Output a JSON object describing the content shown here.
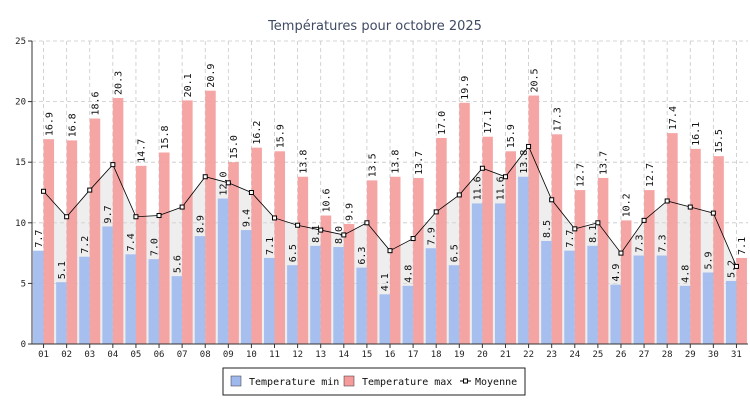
{
  "chart_data": {
    "type": "bar",
    "title": "Températures pour octobre 2025",
    "categories": [
      "01",
      "02",
      "03",
      "04",
      "05",
      "06",
      "07",
      "08",
      "09",
      "10",
      "11",
      "12",
      "13",
      "14",
      "15",
      "16",
      "17",
      "18",
      "19",
      "20",
      "21",
      "22",
      "23",
      "24",
      "25",
      "26",
      "27",
      "28",
      "29",
      "30",
      "31"
    ],
    "ylim": [
      0,
      25
    ],
    "yticks": [
      "0",
      "5",
      "10",
      "15",
      "20",
      "25"
    ],
    "grid": true,
    "legend_position": "bottom-center",
    "series": [
      {
        "name": "Temperature min",
        "type": "bar",
        "color": "#9fb9ee",
        "values": [
          7.7,
          5.1,
          7.2,
          9.7,
          7.4,
          7.0,
          5.6,
          8.9,
          12.0,
          9.4,
          7.1,
          6.5,
          8.1,
          8.0,
          6.3,
          4.1,
          4.8,
          7.9,
          6.5,
          11.6,
          11.6,
          13.8,
          8.5,
          7.7,
          8.1,
          4.9,
          7.3,
          7.3,
          4.8,
          5.9,
          5.2
        ],
        "labels": [
          "7.7",
          "5.1",
          "7.2",
          "9.7",
          "7.4",
          "7.0",
          "5.6",
          "8.9",
          "12.0",
          "9.4",
          "7.1",
          "6.5",
          "8.1",
          "8.0",
          "6.3",
          "4.1",
          "4.8",
          "7.9",
          "6.5",
          "11.6",
          "11.6",
          "13.8",
          "8.5",
          "7.7",
          "8.1",
          "4.9",
          "7.3",
          "7.3",
          "4.8",
          "5.9",
          "5.2"
        ]
      },
      {
        "name": "Temperature max",
        "type": "bar",
        "color": "#f59b9b",
        "values": [
          16.9,
          16.8,
          18.6,
          20.3,
          14.7,
          15.8,
          20.1,
          20.9,
          15.0,
          16.2,
          15.9,
          13.8,
          10.6,
          9.9,
          13.5,
          13.8,
          13.7,
          17.0,
          19.9,
          17.1,
          15.9,
          20.5,
          17.3,
          12.7,
          13.7,
          10.2,
          12.7,
          17.4,
          16.1,
          15.5,
          7.1
        ],
        "labels": [
          "16.9",
          "16.8",
          "18.6",
          "20.3",
          "14.7",
          "15.8",
          "20.1",
          "20.9",
          "15.0",
          "16.2",
          "15.9",
          "13.8",
          "10.6",
          "9.9",
          "13.5",
          "13.8",
          "13.7",
          "17.0",
          "19.9",
          "17.1",
          "15.9",
          "20.5",
          "17.3",
          "12.7",
          "13.7",
          "10.2",
          "12.7",
          "17.4",
          "16.1",
          "15.5",
          "7.1"
        ]
      },
      {
        "name": "Moyenne",
        "type": "line",
        "color": "#000000",
        "values": [
          12.6,
          10.5,
          12.7,
          14.8,
          10.5,
          10.6,
          11.3,
          13.8,
          13.3,
          12.5,
          10.4,
          9.8,
          9.4,
          9.0,
          10.0,
          7.7,
          8.7,
          10.9,
          12.3,
          14.5,
          13.8,
          16.3,
          11.9,
          9.5,
          10.0,
          7.5,
          10.2,
          11.8,
          11.3,
          10.8,
          6.4
        ]
      }
    ],
    "legend": [
      {
        "label": "Temperature min",
        "color": "#9fb9ee"
      },
      {
        "label": "Temperature max",
        "color": "#f59b9b"
      },
      {
        "label": "Moyenne",
        "color": "#000000"
      }
    ]
  }
}
